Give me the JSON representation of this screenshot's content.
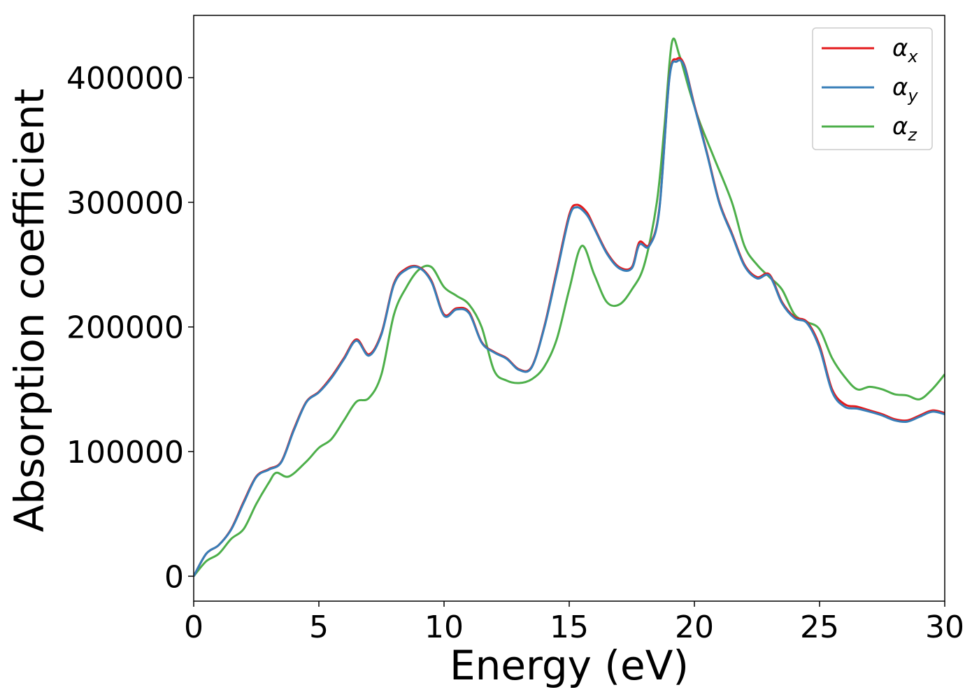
{
  "colors": {
    "alpha_x": "#e41a1c",
    "alpha_y": "#377eb8",
    "alpha_z": "#4daf4a",
    "axis": "#000000",
    "legend_border": "#cccccc"
  },
  "chart_data": {
    "type": "line",
    "xlabel": "Energy (eV)",
    "ylabel": "Absorption coefficient",
    "xlim": [
      0,
      30
    ],
    "ylim": [
      -20000,
      450000
    ],
    "xticks": [
      0,
      5,
      10,
      15,
      20,
      25,
      30
    ],
    "yticks": [
      0,
      100000,
      200000,
      300000,
      400000
    ],
    "xtick_labels": [
      "0",
      "5",
      "10",
      "15",
      "20",
      "25",
      "30"
    ],
    "ytick_labels": [
      "0",
      "100000",
      "200000",
      "300000",
      "400000"
    ],
    "grid": false,
    "legend_position": "top-right",
    "series": [
      {
        "name": "α",
        "subscript": "x",
        "x": [
          0,
          0.5,
          1,
          1.5,
          2,
          2.5,
          3,
          3.5,
          4,
          4.5,
          5,
          5.5,
          6,
          6.5,
          7,
          7.5,
          8,
          8.5,
          9,
          9.5,
          10,
          10.5,
          11,
          11.5,
          12,
          12.5,
          13,
          13.5,
          14,
          14.5,
          15,
          15.3,
          15.7,
          16,
          16.5,
          17,
          17.5,
          17.8,
          18.2,
          18.6,
          19,
          19.3,
          19.6,
          20,
          20.5,
          21,
          21.5,
          22,
          22.5,
          23,
          23.5,
          24,
          24.5,
          25,
          25.5,
          26,
          26.5,
          27,
          27.5,
          28,
          28.5,
          29,
          29.5,
          30
        ],
        "y": [
          0,
          18000,
          25000,
          38000,
          60000,
          80000,
          86000,
          92000,
          118000,
          140000,
          148000,
          160000,
          175000,
          190000,
          178000,
          195000,
          235000,
          247000,
          248000,
          237000,
          210000,
          215000,
          212000,
          188000,
          180000,
          175000,
          166000,
          168000,
          200000,
          245000,
          290000,
          298000,
          292000,
          280000,
          260000,
          248000,
          248000,
          268000,
          266000,
          295000,
          400000,
          415000,
          410000,
          378000,
          340000,
          300000,
          275000,
          250000,
          240000,
          242000,
          220000,
          208000,
          204000,
          185000,
          150000,
          138000,
          136000,
          133000,
          130000,
          126000,
          125000,
          129000,
          133000,
          131000
        ]
      },
      {
        "name": "α",
        "subscript": "y",
        "x": [
          0,
          0.5,
          1,
          1.5,
          2,
          2.5,
          3,
          3.5,
          4,
          4.5,
          5,
          5.5,
          6,
          6.5,
          7,
          7.5,
          8,
          8.5,
          9,
          9.5,
          10,
          10.5,
          11,
          11.5,
          12,
          12.5,
          13,
          13.5,
          14,
          14.5,
          15,
          15.3,
          15.7,
          16,
          16.5,
          17,
          17.5,
          17.8,
          18.2,
          18.6,
          19,
          19.3,
          19.6,
          20,
          20.5,
          21,
          21.5,
          22,
          22.5,
          23,
          23.5,
          24,
          24.5,
          25,
          25.5,
          26,
          26.5,
          27,
          27.5,
          28,
          28.5,
          29,
          29.5,
          30
        ],
        "y": [
          0,
          18000,
          25000,
          37500,
          59000,
          79500,
          85500,
          91500,
          117000,
          139500,
          147500,
          159000,
          174000,
          189000,
          177000,
          194000,
          234000,
          246000,
          247500,
          236000,
          209000,
          214000,
          211000,
          187500,
          179500,
          174500,
          165500,
          167500,
          199000,
          243000,
          288000,
          296000,
          290000,
          279000,
          259000,
          247000,
          247000,
          266000,
          265000,
          294000,
          399000,
          413000,
          409000,
          377000,
          339000,
          299000,
          274000,
          249000,
          239000,
          241000,
          219000,
          207000,
          203000,
          183000,
          148000,
          136000,
          134500,
          132000,
          129000,
          125000,
          124000,
          128000,
          132000,
          130000
        ]
      },
      {
        "name": "α",
        "subscript": "z",
        "x": [
          0,
          0.5,
          1,
          1.5,
          2,
          2.5,
          3,
          3.3,
          3.8,
          4.5,
          5,
          5.5,
          6,
          6.5,
          7,
          7.5,
          8,
          8.5,
          9,
          9.5,
          10,
          10.5,
          11,
          11.5,
          12,
          12.5,
          13,
          13.5,
          14,
          14.5,
          15,
          15.5,
          16,
          16.5,
          17,
          17.5,
          18,
          18.5,
          18.8,
          19.1,
          19.4,
          19.8,
          20.2,
          20.8,
          21.5,
          22,
          22.5,
          23,
          23.5,
          24,
          24.5,
          25,
          25.5,
          26,
          26.5,
          27,
          27.5,
          28,
          28.5,
          29,
          29.5,
          30
        ],
        "y": [
          0,
          12000,
          18000,
          30000,
          38000,
          58000,
          75000,
          83000,
          80000,
          92000,
          103000,
          110000,
          125000,
          140000,
          143000,
          162000,
          210000,
          232000,
          246000,
          248000,
          232000,
          225000,
          218000,
          200000,
          165000,
          157000,
          155000,
          158000,
          168000,
          190000,
          230000,
          265000,
          242000,
          220000,
          218000,
          230000,
          250000,
          300000,
          360000,
          428000,
          418000,
          390000,
          365000,
          335000,
          300000,
          265000,
          250000,
          240000,
          230000,
          210000,
          204000,
          198000,
          175000,
          160000,
          150000,
          152000,
          150000,
          146000,
          145000,
          142000,
          150000,
          162000
        ]
      }
    ]
  }
}
